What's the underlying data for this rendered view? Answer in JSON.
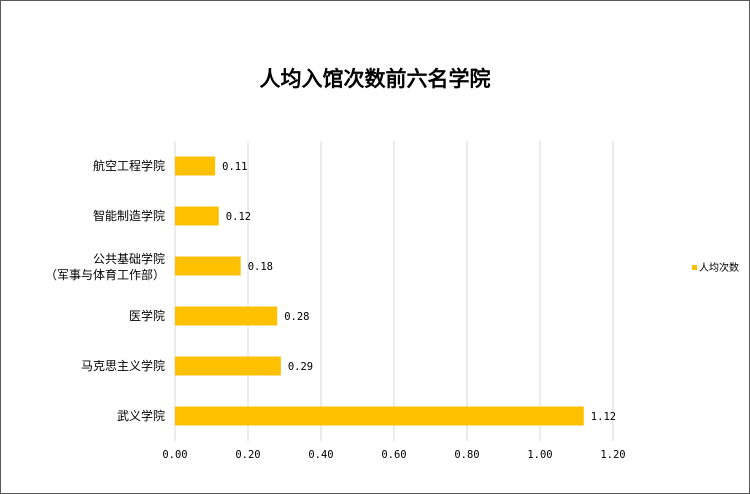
{
  "chart_data": {
    "type": "bar",
    "orientation": "horizontal",
    "title": "人均入馆次数前六名学院",
    "categories": [
      [
        "航空工程学院"
      ],
      [
        "智能制造学院"
      ],
      [
        "公共基础学院",
        "（军事与体育工作部）"
      ],
      [
        "医学院"
      ],
      [
        "马克思主义学院"
      ],
      [
        "武义学院"
      ]
    ],
    "series": [
      {
        "name": "人均次数",
        "values": [
          0.11,
          0.12,
          0.18,
          0.28,
          0.29,
          1.12
        ],
        "color": "#FFC000"
      }
    ],
    "value_labels": [
      "0.11",
      "0.12",
      "0.18",
      "0.28",
      "0.29",
      "1.12"
    ],
    "xlim": [
      0,
      1.2
    ],
    "ticks": [
      0,
      0.2,
      0.4,
      0.6,
      0.8,
      1.0,
      1.2
    ],
    "tick_labels": [
      "0.00",
      "0.20",
      "0.40",
      "0.60",
      "0.80",
      "1.00",
      "1.20"
    ],
    "grid": true,
    "gridline_color": "#D9D9D9",
    "legend_position": "right"
  }
}
